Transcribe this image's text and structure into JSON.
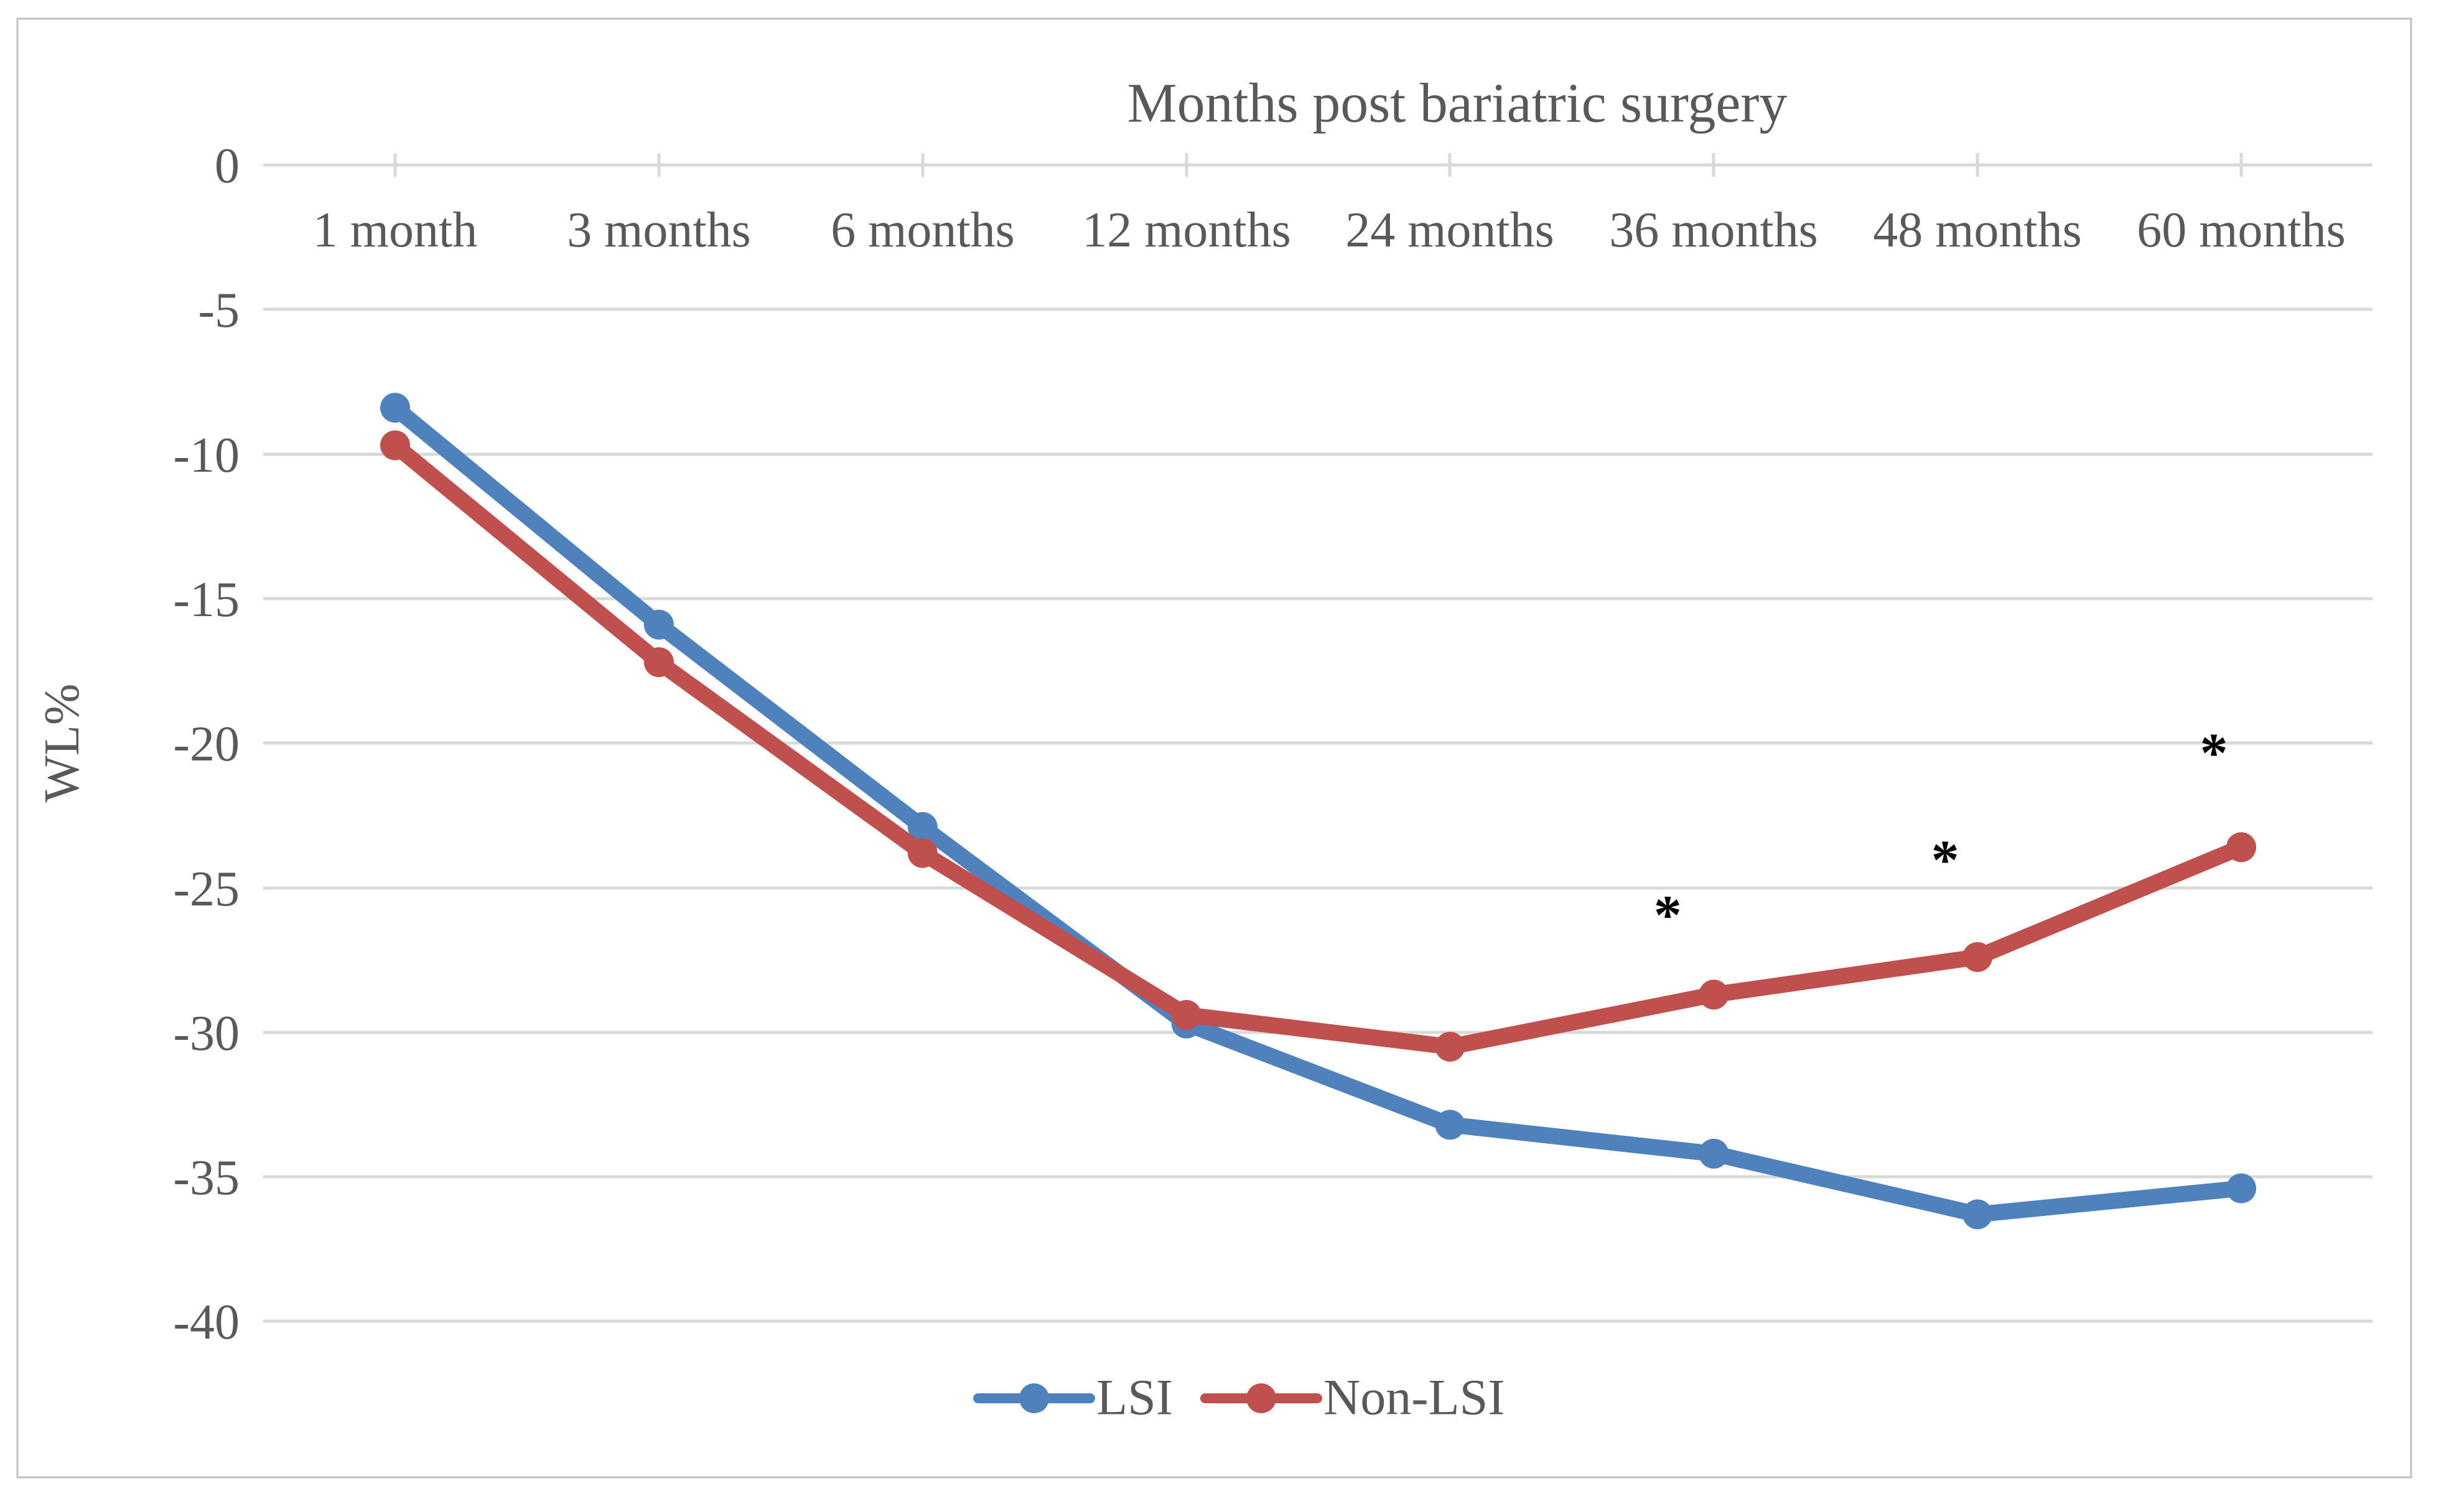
{
  "figure": {
    "background": "#FFFFFF",
    "border_color": "#BFBFBF"
  },
  "chart_data": {
    "type": "line",
    "title": "Months post bariatric surgery",
    "xlabel": "",
    "ylabel": "WL%",
    "categories": [
      "1 month",
      "3 months",
      "6 months",
      "12 months",
      "24 months",
      "36 months",
      "48 months",
      "60 months"
    ],
    "series": [
      {
        "name": "LSI",
        "color": "#4F81BD",
        "values": [
          -8.4,
          -15.9,
          -22.9,
          -29.7,
          -33.2,
          -34.2,
          -36.3,
          -35.4
        ]
      },
      {
        "name": "Non-LSI",
        "color": "#C0504D",
        "values": [
          -9.7,
          -17.2,
          -23.8,
          -29.4,
          -30.5,
          -28.7,
          -27.4,
          -23.6
        ]
      }
    ],
    "ylim": [
      0,
      -40
    ],
    "y_tick_step": 5,
    "y_tick_labels": [
      "0",
      "-5",
      "-10",
      "-15",
      "-20",
      "-25",
      "-30",
      "-35",
      "-40"
    ],
    "grid": "horizontal",
    "gridline_color": "#D9D9D9",
    "text_color": "#595959",
    "legend_position": "bottom",
    "annotations": [
      {
        "symbol": "*",
        "category_index": 5,
        "value": -25.6,
        "dx": -74
      },
      {
        "symbol": "*",
        "category_index": 6,
        "value": -23.7,
        "dx": -52
      },
      {
        "symbol": "*",
        "category_index": 7,
        "value": -20.0,
        "dx": -44
      }
    ]
  }
}
